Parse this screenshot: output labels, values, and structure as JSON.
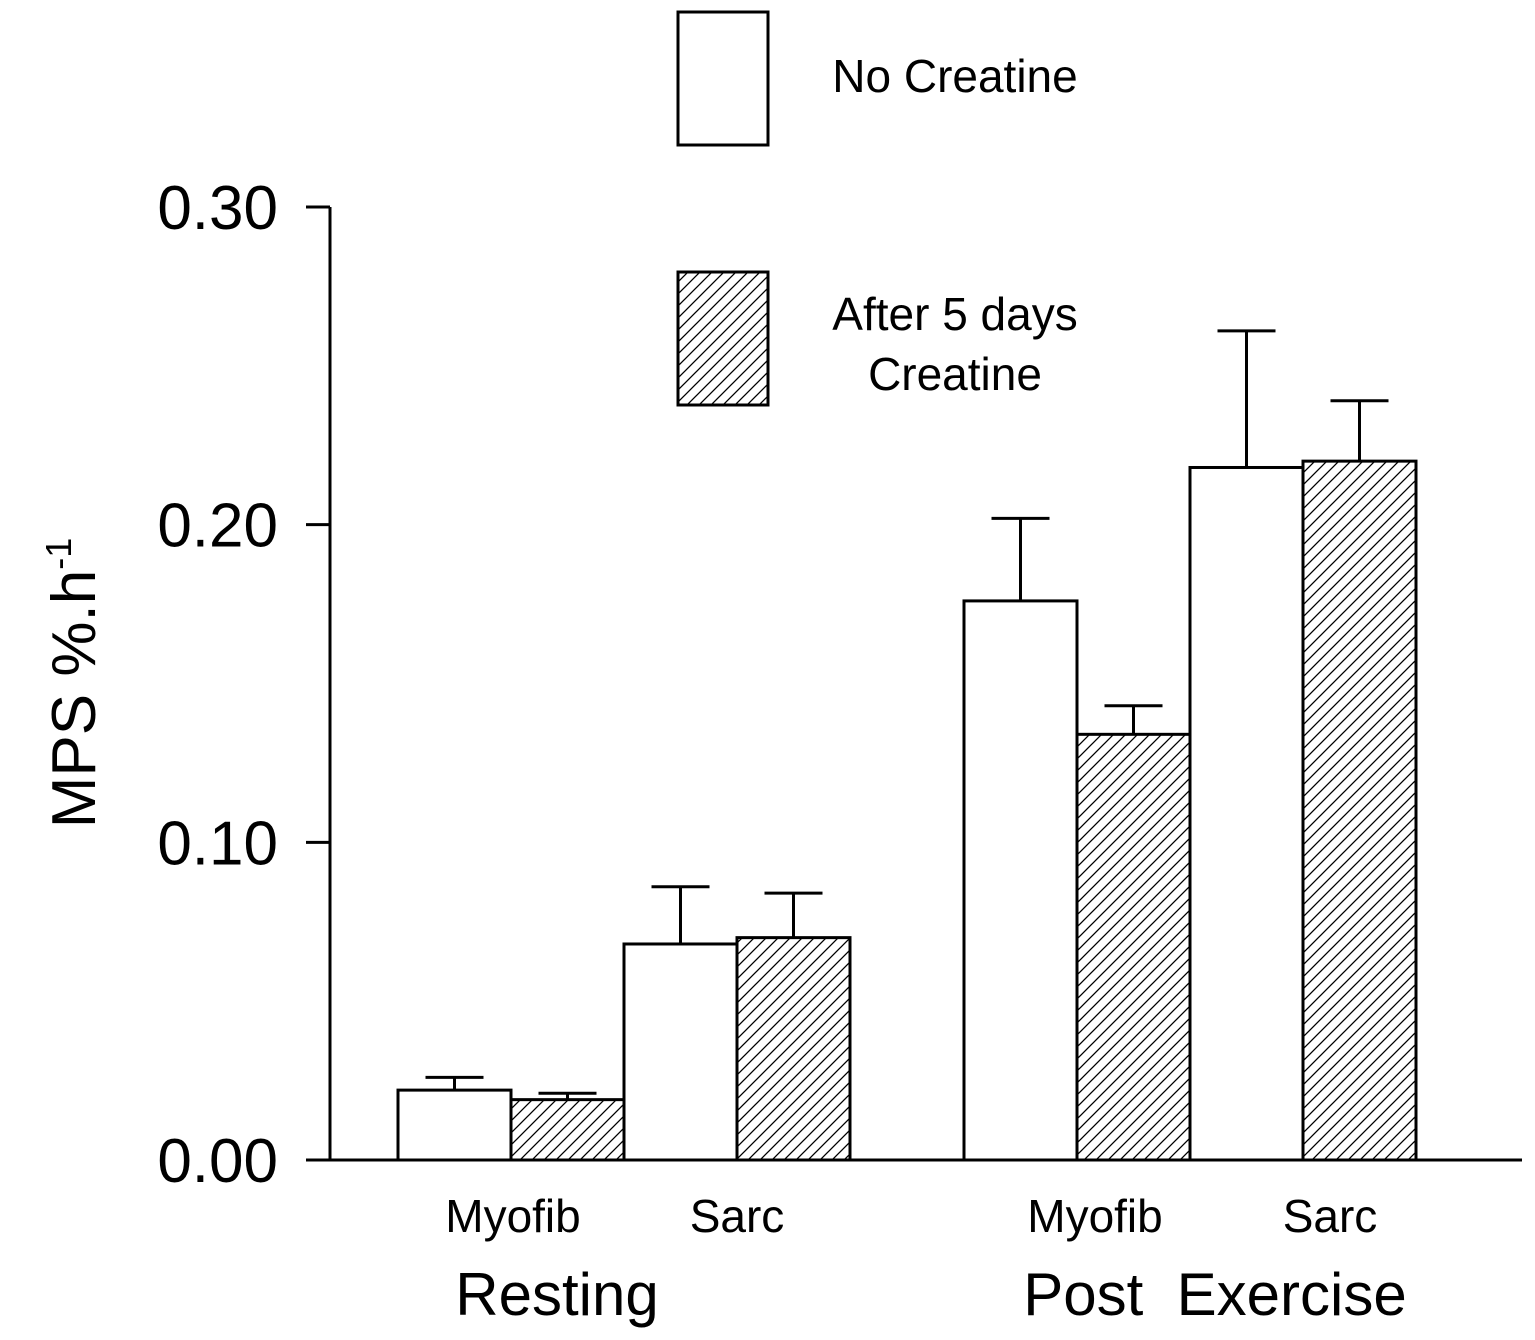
{
  "chart_data": {
    "type": "bar",
    "ylabel": "MPS %.h",
    "ylabel_superscript": "-1",
    "ylim": [
      0,
      0.3
    ],
    "yticks": [
      "0.00",
      "0.10",
      "0.20",
      "0.30"
    ],
    "groups": [
      {
        "label": "Resting",
        "categories": [
          "Myofib",
          "Sarc"
        ]
      },
      {
        "label": "Post  Exercise",
        "categories": [
          "Myofib",
          "Sarc"
        ]
      }
    ],
    "categories": [
      "Resting Myofib",
      "Resting Sarc",
      "Post Exercise Myofib",
      "Post Exercise Sarc"
    ],
    "series": [
      {
        "name": "No Creatine",
        "fill": "plain",
        "values": [
          0.022,
          0.068,
          0.176,
          0.218
        ],
        "errors": [
          0.004,
          0.018,
          0.026,
          0.043
        ]
      },
      {
        "name": "After 5 days Creatine",
        "name_lines": [
          "After 5 days",
          "Creatine"
        ],
        "fill": "hatched",
        "values": [
          0.019,
          0.07,
          0.134,
          0.22
        ],
        "errors": [
          0.002,
          0.014,
          0.009,
          0.019
        ]
      }
    ],
    "legend_position": "top",
    "grid": false
  },
  "colors": {
    "stroke": "#000000",
    "background": "#ffffff"
  }
}
